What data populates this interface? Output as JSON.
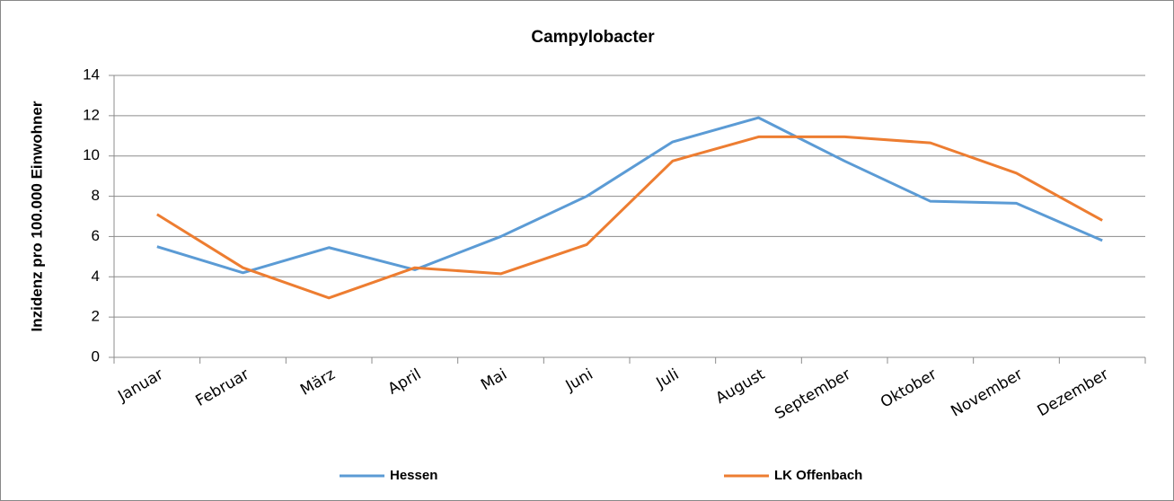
{
  "chart_data": {
    "type": "line",
    "title": "Campylobacter",
    "ylabel": "Inzidenz pro 100.000 Einwohner",
    "categories": [
      "Januar",
      "Februar",
      "März",
      "April",
      "Mai",
      "Juni",
      "Juli",
      "August",
      "September",
      "Oktober",
      "November",
      "Dezember"
    ],
    "series": [
      {
        "name": "Hessen",
        "color": "#5b9bd5",
        "values": [
          5.5,
          4.2,
          5.45,
          4.35,
          6.0,
          8.0,
          10.7,
          11.9,
          9.75,
          7.75,
          7.65,
          5.8
        ]
      },
      {
        "name": "LK Offenbach",
        "color": "#ed7d31",
        "values": [
          7.1,
          4.45,
          2.95,
          4.45,
          4.15,
          5.6,
          9.75,
          10.95,
          10.95,
          10.65,
          9.15,
          6.8
        ]
      }
    ],
    "ylim": [
      0,
      14
    ],
    "yticks": [
      0,
      2,
      4,
      6,
      8,
      10,
      12,
      14
    ],
    "grid": true,
    "legend": "bottom"
  }
}
